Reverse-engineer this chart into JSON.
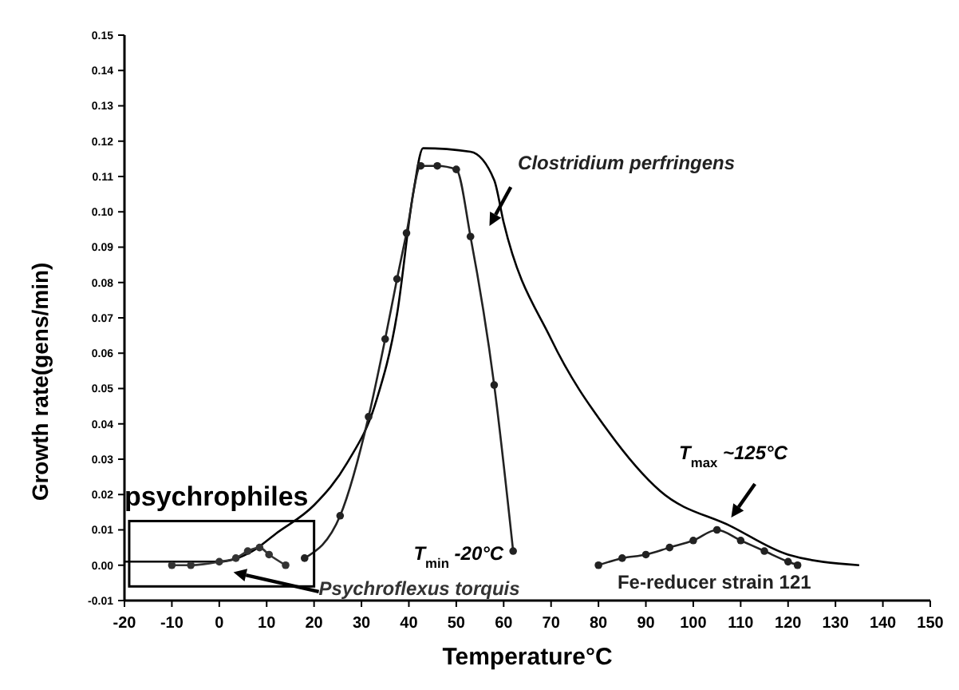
{
  "chart_data": {
    "type": "line",
    "xlabel": "Temperature°C",
    "ylabel": "Growth rate(gens/min)",
    "xlim": [
      -20,
      150
    ],
    "xticks": [
      -20,
      -10,
      0,
      10,
      20,
      30,
      40,
      50,
      60,
      70,
      80,
      90,
      100,
      110,
      120,
      130,
      140,
      150
    ],
    "ylim": [
      -0.01,
      0.15
    ],
    "yticks": [
      {
        "value": -0.01,
        "label": "-0.01"
      },
      {
        "value": 0,
        "label": "0.00"
      },
      {
        "value": 0.01,
        "label": "0.01"
      },
      {
        "value": 0.02,
        "label": "0.02"
      },
      {
        "value": 0.03,
        "label": "0.03"
      },
      {
        "value": 0.04,
        "label": "0.04"
      },
      {
        "value": 0.05,
        "label": "0.05"
      },
      {
        "value": 0.06,
        "label": "0.06"
      },
      {
        "value": 0.07,
        "label": "0.07"
      },
      {
        "value": 0.08,
        "label": "0.08"
      },
      {
        "value": 0.09,
        "label": "0.09"
      },
      {
        "value": 0.1,
        "label": "0.10"
      },
      {
        "value": 0.11,
        "label": "0.11"
      },
      {
        "value": 0.12,
        "label": "0.12"
      },
      {
        "value": 0.13,
        "label": "0.13"
      },
      {
        "value": 0.14,
        "label": "0.14"
      },
      {
        "value": 0.15,
        "label": "0.15"
      }
    ],
    "grid": false,
    "legend": false,
    "series": [
      {
        "color": "#000000",
        "marker": "none",
        "x": [
          -20,
          0,
          7,
          12,
          20,
          27,
          33,
          37.5,
          41,
          43,
          53,
          58,
          60,
          70,
          82,
          93,
          108,
          120,
          135
        ],
        "values": [
          0.001,
          0.001,
          0.004,
          0.009,
          0.017,
          0.029,
          0.046,
          0.071,
          0.106,
          0.118,
          0.117,
          0.109,
          0.097,
          0.064,
          0.038,
          0.021,
          0.011,
          0.003,
          0.0
        ]
      },
      {
        "name": "Clostridium perfringens",
        "color": "#222222",
        "marker": "circle",
        "x": [
          18,
          25.5,
          31.5,
          35,
          37.5,
          39.5,
          42.5,
          46,
          50,
          53,
          58,
          62
        ],
        "values": [
          0.002,
          0.014,
          0.042,
          0.064,
          0.081,
          0.094,
          0.113,
          0.113,
          0.112,
          0.093,
          0.051,
          0.004
        ]
      },
      {
        "name": "Psychroflexus torquis",
        "color": "#333333",
        "marker": "circle",
        "x": [
          -10,
          -6,
          0,
          3.5,
          6,
          8.5,
          10.5,
          14
        ],
        "values": [
          0.0,
          0.0,
          0.001,
          0.002,
          0.004,
          0.005,
          0.003,
          0.0
        ]
      },
      {
        "name": "Fe-reducer strain 121",
        "color": "#222222",
        "marker": "circle",
        "x": [
          80,
          85,
          90,
          95,
          100,
          105,
          110,
          115,
          120,
          122
        ],
        "values": [
          0.0,
          0.002,
          0.003,
          0.005,
          0.007,
          0.01,
          0.007,
          0.004,
          0.001,
          0.0
        ]
      }
    ],
    "annotations": [
      "psychrophiles",
      "T$_{min}$ -20°C",
      "T$_{max}$ ~125°C"
    ]
  }
}
